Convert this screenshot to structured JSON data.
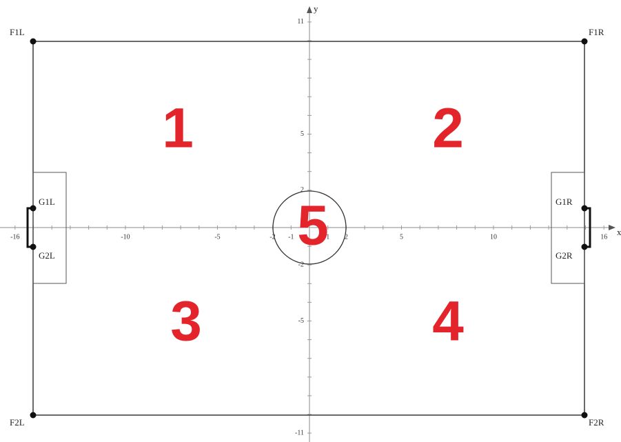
{
  "axes": {
    "x_label": "x",
    "y_label": "y",
    "xticks": [
      -16,
      -10,
      -5,
      -2,
      -1,
      1,
      2,
      5,
      10,
      16
    ],
    "yticks": [
      11,
      5,
      2,
      -2,
      -5,
      -11
    ]
  },
  "points": [
    {
      "label": "F1L"
    },
    {
      "label": "F1R"
    },
    {
      "label": "F2L"
    },
    {
      "label": "F2R"
    },
    {
      "label": "G1L"
    },
    {
      "label": "G2L"
    },
    {
      "label": "G1R"
    },
    {
      "label": "G2R"
    }
  ],
  "zones": [
    "1",
    "2",
    "3",
    "4",
    "5"
  ]
}
